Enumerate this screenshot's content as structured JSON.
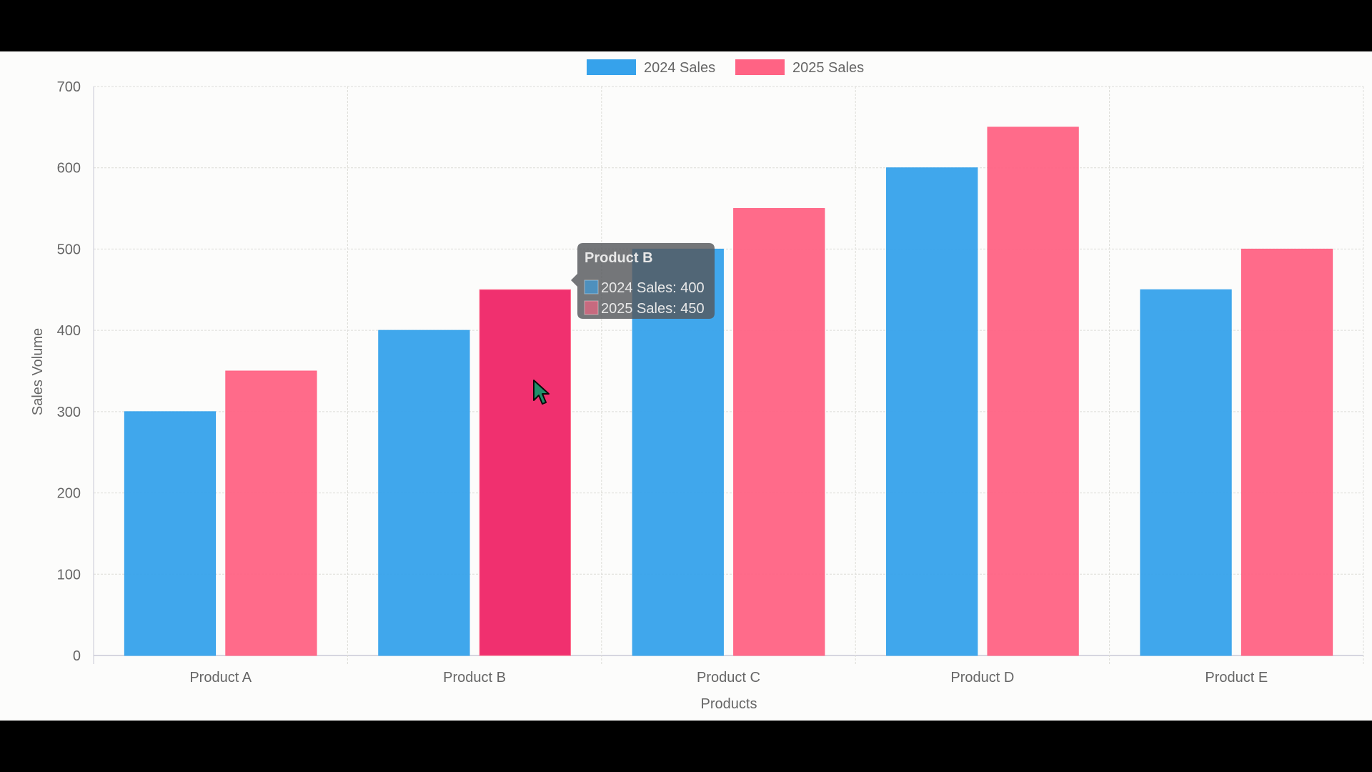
{
  "chart_data": {
    "type": "bar",
    "title": "",
    "xlabel": "Products",
    "ylabel": "Sales Volume",
    "categories": [
      "Product A",
      "Product B",
      "Product C",
      "Product D",
      "Product E"
    ],
    "series": [
      {
        "name": "2024 Sales",
        "values": [
          300,
          400,
          500,
          600,
          450
        ],
        "color": "#36A2EB"
      },
      {
        "name": "2025 Sales",
        "values": [
          350,
          450,
          550,
          650,
          500
        ],
        "color": "#FF6384"
      }
    ],
    "ylim": [
      0,
      700
    ],
    "yticks": [
      "0",
      "100",
      "200",
      "300",
      "400",
      "500",
      "600",
      "700"
    ],
    "grid": true,
    "legend_position": "top-center",
    "hovered_category_index": 1,
    "hover_color": "#F0306F",
    "tooltip": {
      "title": "Product B",
      "lines": [
        "2024 Sales: 400",
        "2025 Sales: 450"
      ]
    }
  },
  "colors": {
    "frame": "#000000",
    "plot_background": "#fcfcfb",
    "grid": "#dcdcd8",
    "axis": "#c9c9d6",
    "text": "#666666",
    "tooltip_background": "#55585c"
  },
  "cursor": "arrow-pointer-icon"
}
